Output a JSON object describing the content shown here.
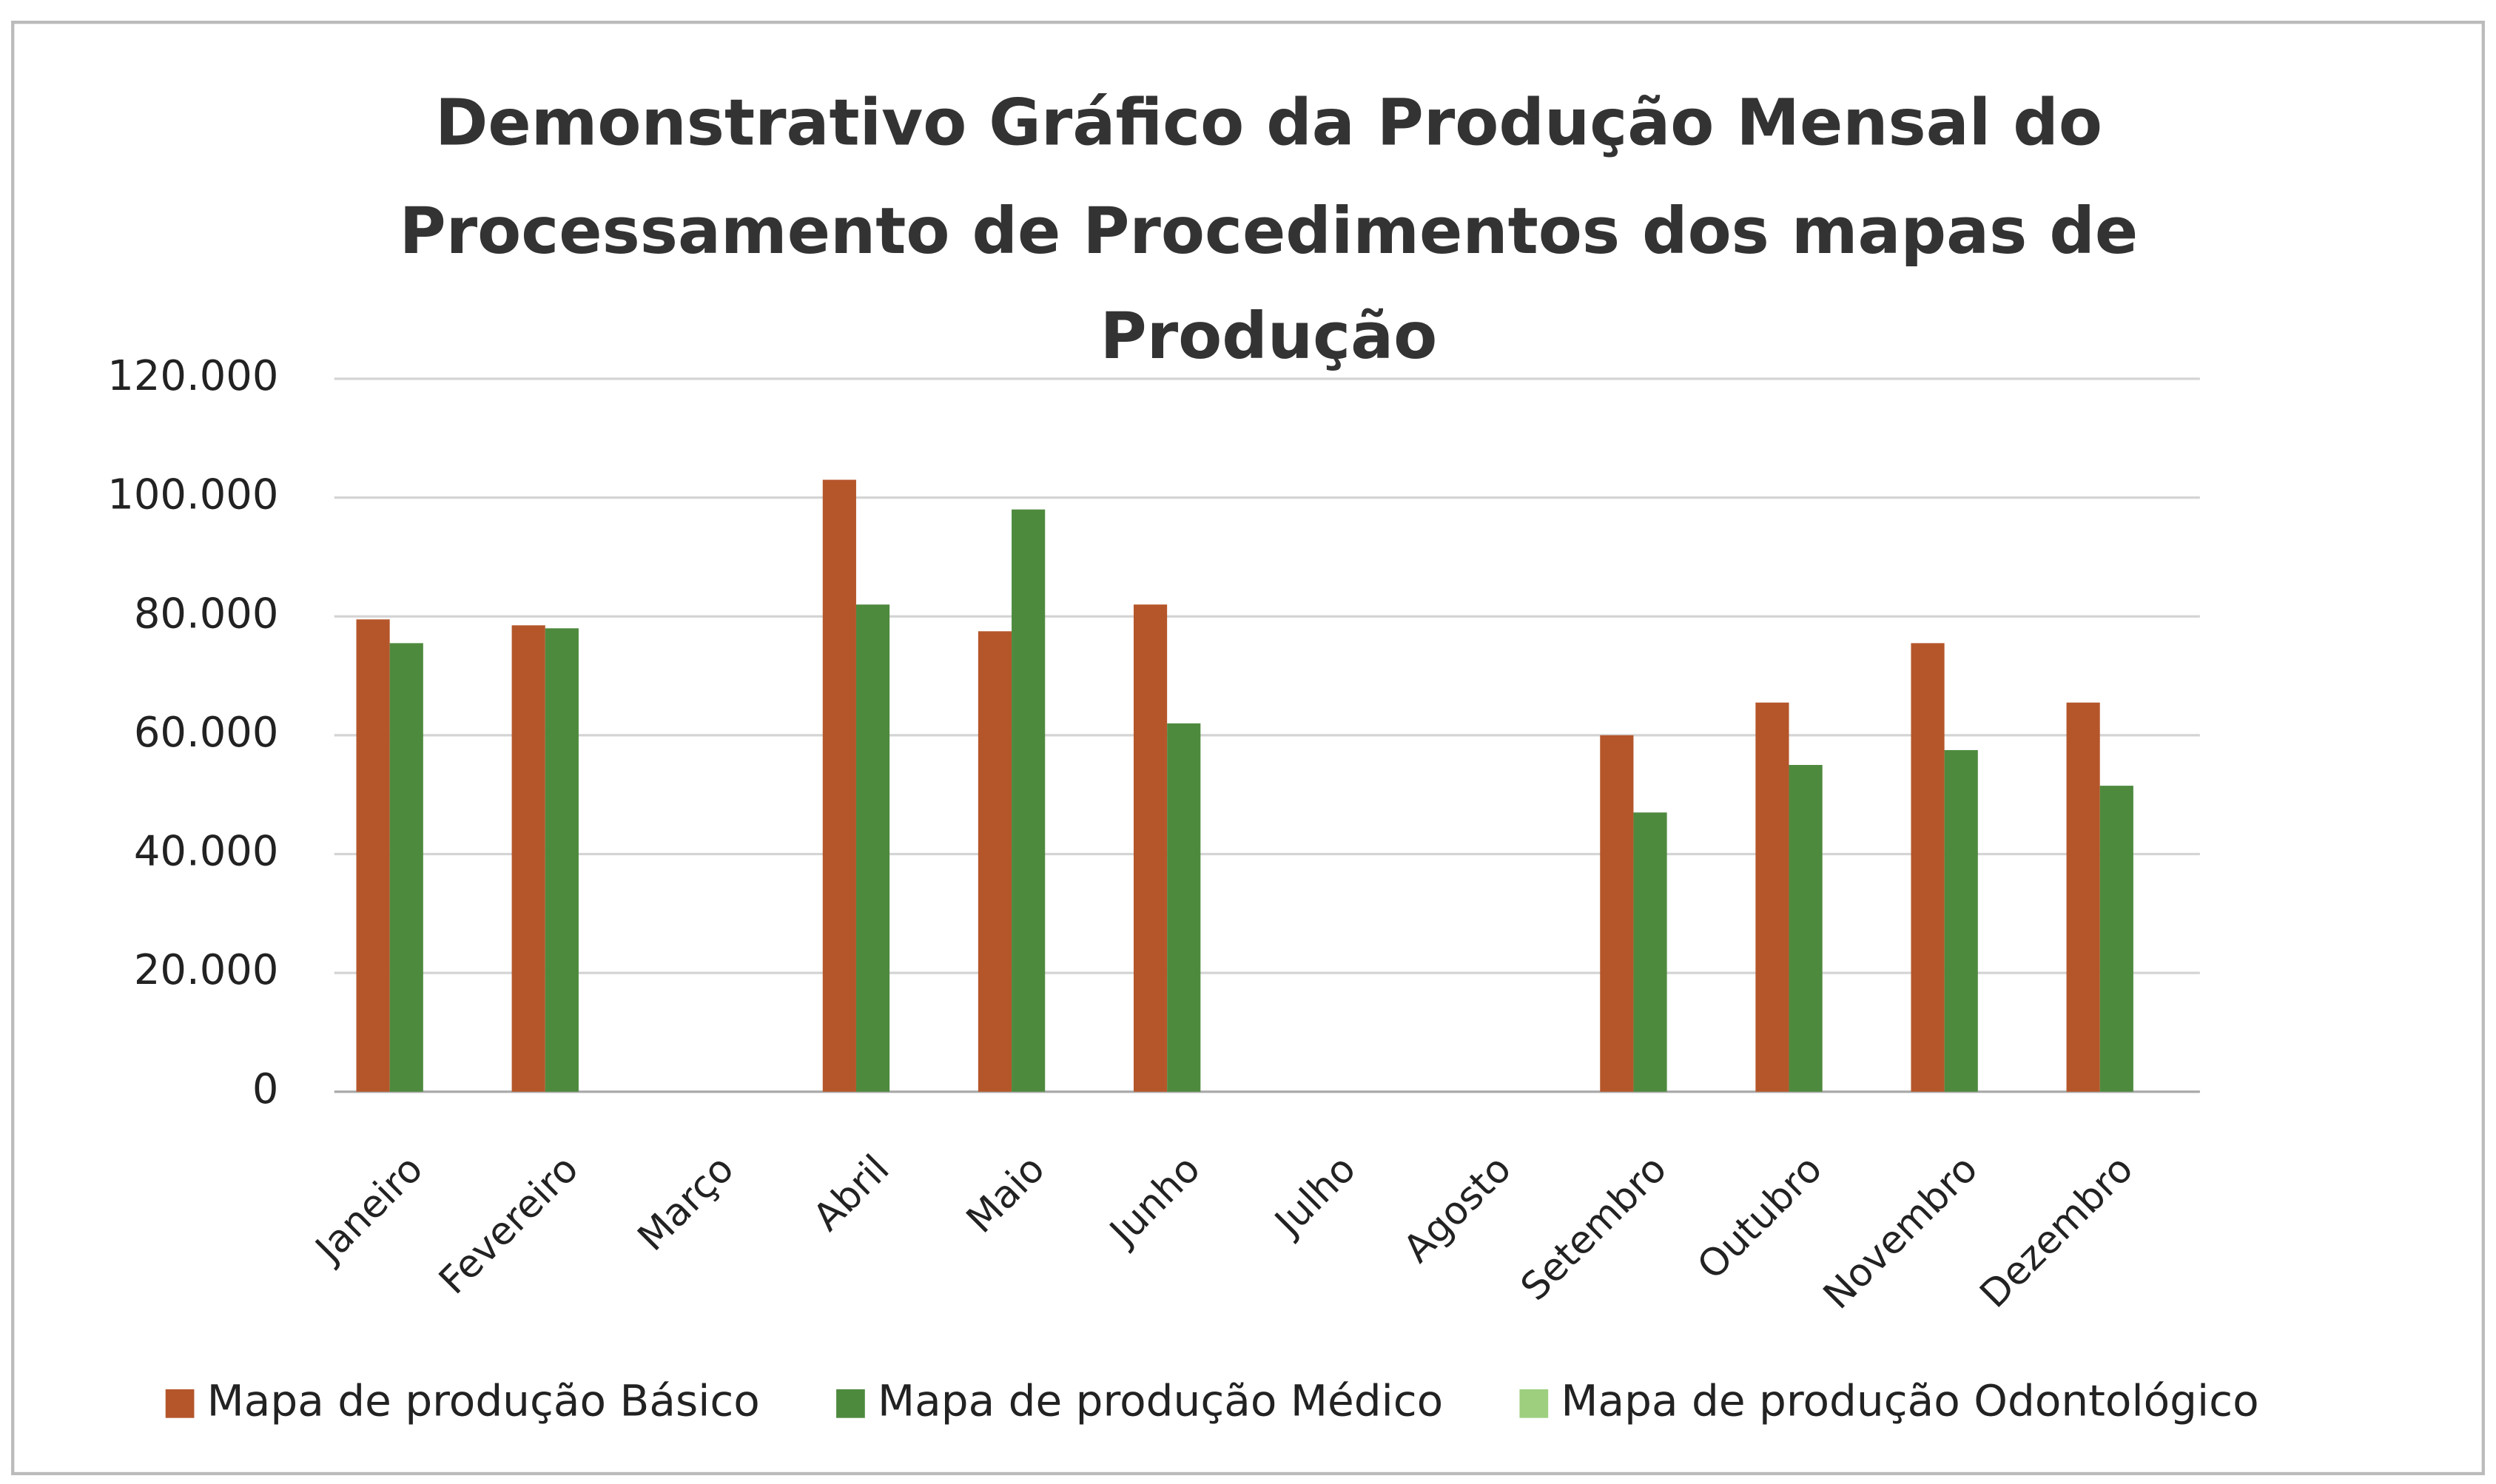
{
  "chart_data": {
    "type": "bar",
    "title": [
      "Demonstrativo Gráfico da Produção Mensal do",
      "Processamento de Procedimentos dos mapas de",
      "Produção"
    ],
    "categories": [
      "Janeiro",
      "Fevereiro",
      "Março",
      "Abril",
      "Maio",
      "Junho",
      "Julho",
      "Agosto",
      "Setembro",
      "Outubro",
      "Novembro",
      "Dezembro"
    ],
    "series": [
      {
        "name": "Mapa de produção Básico",
        "color": "#b5562a",
        "values": [
          79500,
          78500,
          null,
          103000,
          77500,
          82000,
          null,
          null,
          60000,
          65500,
          75500,
          65500
        ]
      },
      {
        "name": "Mapa de produção Médico",
        "color": "#4e8a3e",
        "values": [
          75500,
          78000,
          null,
          82000,
          98000,
          62000,
          null,
          null,
          47000,
          55000,
          57500,
          51500
        ]
      },
      {
        "name": "Mapa de produção Odontológico",
        "color": "#9dcf7f",
        "values": [
          null,
          null,
          null,
          null,
          null,
          null,
          null,
          null,
          null,
          null,
          null,
          null
        ]
      }
    ],
    "ylim": [
      0,
      120000
    ],
    "yticks": [
      0,
      {
        "value": 20000,
        "label": "20.000"
      },
      {
        "value": 40000,
        "label": "40.000"
      },
      {
        "value": 60000,
        "label": "60.000"
      },
      {
        "value": 80000,
        "label": "80.000"
      },
      {
        "value": 100000,
        "label": "100.000"
      },
      {
        "value": 120000,
        "label": "120.000"
      }
    ],
    "grid": true,
    "legend": "bottom"
  }
}
